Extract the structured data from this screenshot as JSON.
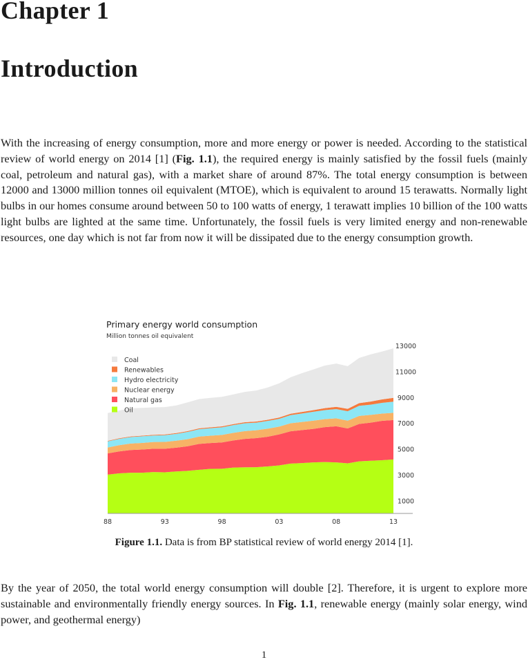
{
  "chapter": {
    "label": "Chapter 1",
    "title": "Introduction"
  },
  "paragraph1": {
    "t1": "With the increasing of energy consumption, more and more energy or power is needed. According to the statistical review of world energy on 2014 [1] (",
    "ref1": "Fig. 1.1",
    "t2": "), the required energy is mainly satisfied by the fossil fuels (mainly coal, petroleum and natural gas), with a market share of around 87%. The total energy consumption is between 12000 and 13000 million tonnes oil equivalent (MTOE), which is equivalent to around 15 terawatts. Normally light bulbs in our homes consume around between 50 to 100 watts of energy, 1 terawatt implies 10 billion of the 100 watts light bulbs are lighted at the same time. Unfortunately, the fossil fuels is very limited energy and non-renewable resources, one day which is not far from now it will be dissipated due to the energy consumption growth."
  },
  "figure": {
    "caption_label": "Figure 1.1.",
    "caption_text": " Data is from BP statistical review of world energy 2014 [1]."
  },
  "paragraph2": {
    "t1": "By the year of 2050, the total world energy consumption will double [2]. Therefore, it is urgent to explore more sustainable and environmentally friendly energy sources. In ",
    "ref1": "Fig. 1.1",
    "t2": ", renewable energy (mainly solar energy, wind power, and geothermal energy)"
  },
  "page_number": "1",
  "chart_data": {
    "type": "area",
    "stacked": true,
    "title": "Primary energy world consumption",
    "subtitle": "Million tonnes oil equivalent",
    "x_tick_labels": [
      "88",
      "93",
      "98",
      "03",
      "08",
      "13"
    ],
    "x": [
      1988,
      1989,
      1990,
      1991,
      1992,
      1993,
      1994,
      1995,
      1996,
      1997,
      1998,
      1999,
      2000,
      2001,
      2002,
      2003,
      2004,
      2005,
      2006,
      2007,
      2008,
      2009,
      2010,
      2011,
      2012,
      2013
    ],
    "xlim": [
      1988,
      2013
    ],
    "ylim": [
      0,
      13000
    ],
    "y_ticks": [
      1000,
      3000,
      5000,
      7000,
      9000,
      11000,
      13000
    ],
    "y_axis_side": "right",
    "legend_position": "top-left",
    "series": [
      {
        "name": "Oil",
        "color": "#b5ff14",
        "values": [
          3000,
          3100,
          3150,
          3150,
          3200,
          3180,
          3250,
          3300,
          3380,
          3450,
          3460,
          3550,
          3570,
          3580,
          3640,
          3720,
          3860,
          3900,
          3950,
          3980,
          3950,
          3880,
          4030,
          4080,
          4120,
          4180
        ]
      },
      {
        "name": "Natural gas",
        "color": "#ff4f5c",
        "values": [
          1650,
          1700,
          1760,
          1800,
          1810,
          1830,
          1840,
          1900,
          2000,
          2000,
          2040,
          2100,
          2200,
          2250,
          2300,
          2400,
          2500,
          2550,
          2600,
          2700,
          2800,
          2700,
          2900,
          2950,
          3050,
          3050
        ]
      },
      {
        "name": "Nuclear energy",
        "color": "#f7b266",
        "values": [
          450,
          480,
          500,
          510,
          520,
          530,
          540,
          550,
          570,
          570,
          580,
          590,
          600,
          610,
          620,
          600,
          620,
          630,
          630,
          620,
          610,
          600,
          620,
          600,
          560,
          560
        ]
      },
      {
        "name": "Hydro electricity",
        "color": "#8ce6f5",
        "values": [
          480,
          490,
          500,
          510,
          500,
          520,
          530,
          560,
          570,
          580,
          590,
          600,
          610,
          590,
          600,
          600,
          630,
          660,
          690,
          700,
          720,
          730,
          780,
          790,
          830,
          860
        ]
      },
      {
        "name": "Renewables",
        "color": "#f57a3d",
        "values": [
          40,
          45,
          50,
          50,
          55,
          55,
          60,
          60,
          65,
          70,
          70,
          75,
          80,
          85,
          90,
          100,
          110,
          120,
          130,
          150,
          170,
          190,
          210,
          240,
          270,
          300
        ]
      },
      {
        "name": "Coal",
        "color": "#e8e8e8",
        "values": [
          2150,
          2150,
          2180,
          2150,
          2130,
          2120,
          2140,
          2230,
          2270,
          2280,
          2290,
          2300,
          2350,
          2400,
          2500,
          2650,
          2820,
          3000,
          3150,
          3300,
          3350,
          3300,
          3500,
          3650,
          3700,
          3830
        ]
      }
    ]
  }
}
